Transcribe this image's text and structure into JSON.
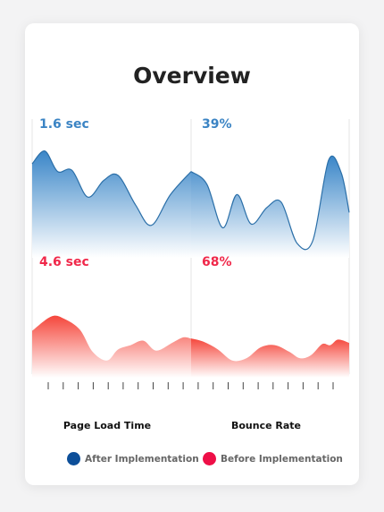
{
  "title": "Overview",
  "colors": {
    "after_line": "#2b6fa8",
    "after_fill_top": "#3a86c8",
    "after_fill_bottom": "#ffffff",
    "before_fill_top": "#f5473c",
    "before_fill_bottom": "#ffffff",
    "after_dot": "#0d4f99",
    "before_dot": "#ee0f47",
    "divider": "#e6e6e6",
    "tick": "#444444"
  },
  "chart_data": {
    "type": "area",
    "categories": [
      "Page Load Time",
      "Bounce Rate"
    ],
    "value_labels": {
      "after": [
        "1.6 sec",
        "39%"
      ],
      "before": [
        "4.6 sec",
        "68%"
      ]
    },
    "series": [
      {
        "name": "After Implementation",
        "segments": [
          [
            [
              0,
              0.72
            ],
            [
              0.08,
              0.82
            ],
            [
              0.16,
              0.66
            ],
            [
              0.25,
              0.67
            ],
            [
              0.35,
              0.46
            ],
            [
              0.45,
              0.59
            ],
            [
              0.54,
              0.63
            ],
            [
              0.65,
              0.4
            ],
            [
              0.75,
              0.24
            ],
            [
              0.87,
              0.48
            ],
            [
              1.0,
              0.66
            ]
          ],
          [
            [
              0,
              0.66
            ],
            [
              0.1,
              0.56
            ],
            [
              0.2,
              0.22
            ],
            [
              0.29,
              0.48
            ],
            [
              0.38,
              0.25
            ],
            [
              0.48,
              0.38
            ],
            [
              0.57,
              0.42
            ],
            [
              0.67,
              0.1
            ],
            [
              0.77,
              0.12
            ],
            [
              0.87,
              0.75
            ],
            [
              0.95,
              0.65
            ],
            [
              1.0,
              0.34
            ]
          ]
        ]
      },
      {
        "name": "Before Implementation",
        "segments": [
          [
            [
              0,
              0.41
            ],
            [
              0.12,
              0.54
            ],
            [
              0.2,
              0.52
            ],
            [
              0.3,
              0.42
            ],
            [
              0.38,
              0.22
            ],
            [
              0.47,
              0.14
            ],
            [
              0.54,
              0.24
            ],
            [
              0.62,
              0.28
            ],
            [
              0.7,
              0.32
            ],
            [
              0.78,
              0.23
            ],
            [
              0.88,
              0.3
            ],
            [
              0.95,
              0.35
            ],
            [
              1.0,
              0.34
            ]
          ],
          [
            [
              0,
              0.34
            ],
            [
              0.08,
              0.31
            ],
            [
              0.17,
              0.24
            ],
            [
              0.26,
              0.14
            ],
            [
              0.35,
              0.16
            ],
            [
              0.44,
              0.26
            ],
            [
              0.53,
              0.28
            ],
            [
              0.62,
              0.22
            ],
            [
              0.69,
              0.16
            ],
            [
              0.76,
              0.19
            ],
            [
              0.83,
              0.29
            ],
            [
              0.88,
              0.28
            ],
            [
              0.93,
              0.33
            ],
            [
              1.0,
              0.3
            ]
          ]
        ]
      }
    ],
    "tick_count": 20,
    "grid": false,
    "legend_position": "bottom"
  }
}
